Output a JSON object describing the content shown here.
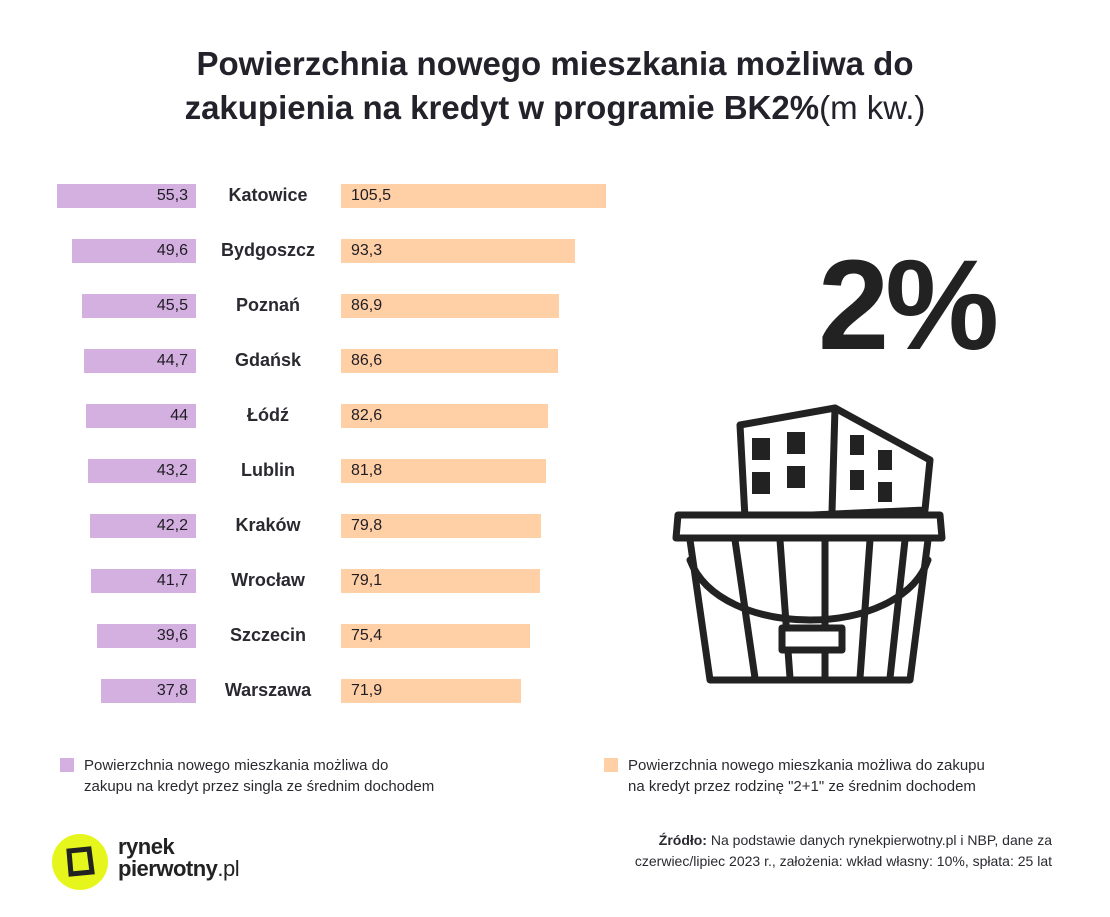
{
  "title": {
    "line1": "Powierzchnia nowego mieszkania możliwa do",
    "line2": "zakupienia na kredyt w programie BK2%",
    "unit": "(m kw.)"
  },
  "illustration": {
    "big_text": "2%"
  },
  "chart_data": {
    "type": "bar",
    "orientation": "horizontal-butterfly",
    "title": "Powierzchnia nowego mieszkania możliwa do zakupienia na kredyt w programie BK2% (m kw.)",
    "categories": [
      "Katowice",
      "Bydgoszcz",
      "Poznań",
      "Gdańsk",
      "Łódź",
      "Lublin",
      "Kraków",
      "Wrocław",
      "Szczecin",
      "Warszawa"
    ],
    "series": [
      {
        "name": "Powierzchnia nowego mieszkania możliwa do zakupu na kredyt przez singla ze średnim dochodem",
        "color": "#d4b0e0",
        "values": [
          55.3,
          49.6,
          45.5,
          44.7,
          44,
          43.2,
          42.2,
          41.7,
          39.6,
          37.8
        ],
        "labels": [
          "55,3",
          "49,6",
          "45,5",
          "44,7",
          "44",
          "43,2",
          "42,2",
          "41,7",
          "39,6",
          "37,8"
        ]
      },
      {
        "name": "Powierzchnia nowego mieszkania możliwa do zakupu na kredyt przez rodzinę \"2+1\" ze średnim dochodem",
        "color": "#ffcfa6",
        "values": [
          105.5,
          93.3,
          86.9,
          86.6,
          82.6,
          81.8,
          79.8,
          79.1,
          75.4,
          71.9
        ],
        "labels": [
          "105,5",
          "93,3",
          "86,9",
          "86,6",
          "82,6",
          "81,8",
          "79,8",
          "79,1",
          "75,4",
          "71,9"
        ]
      }
    ],
    "legend": {
      "single_line1": "Powierzchnia nowego mieszkania możliwa do",
      "single_line2": "zakupu na kredyt przez singla ze średnim dochodem",
      "family_line1": "Powierzchnia nowego mieszkania możliwa do zakupu",
      "family_line2": "na kredyt przez rodzinę \"2+1\" ze średnim dochodem",
      "placement": "bottom"
    },
    "grid": false
  },
  "source": {
    "label": "Źródło:",
    "line1": " Na podstawie danych rynekpierwotny.pl i NBP, dane za",
    "line2": "czerwiec/lipiec 2023 r., założenia: wkład własny: 10%, spłata: 25 lat"
  },
  "logo": {
    "word1": "rynek",
    "word2": "pierwotny",
    "tld": ".pl",
    "color": "#e6f61c"
  }
}
